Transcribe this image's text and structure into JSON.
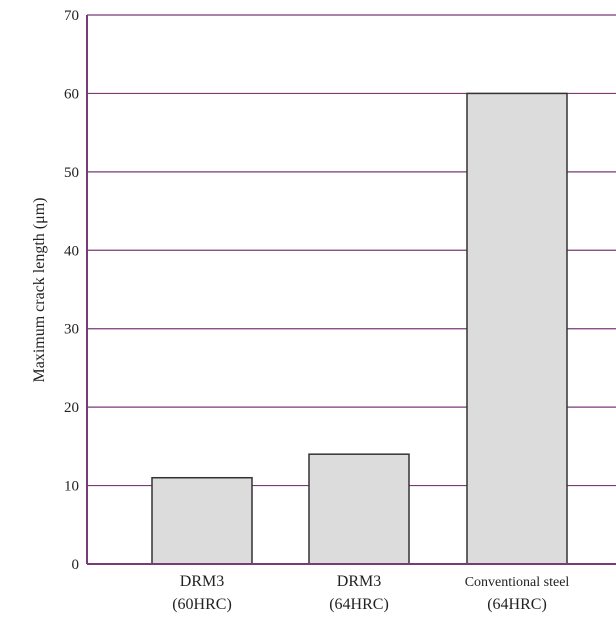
{
  "chart_data": {
    "type": "bar",
    "categories": [
      [
        "DRM3",
        "(60HRC)"
      ],
      [
        "DRM3",
        "(64HRC)"
      ],
      [
        "Conventional steel",
        "(64HRC)"
      ]
    ],
    "values": [
      11,
      14,
      60
    ],
    "ylabel": "Maximum crack length (μm)",
    "xlabel": "",
    "ylim": [
      0,
      70
    ],
    "yticks": [
      0,
      10,
      20,
      30,
      40,
      50,
      60,
      70
    ],
    "grid": true,
    "colors": {
      "bar_fill": "#dcdcdc",
      "bar_stroke": "#333333",
      "grid": "#7a3a78",
      "axis": "#7a3a78"
    }
  }
}
